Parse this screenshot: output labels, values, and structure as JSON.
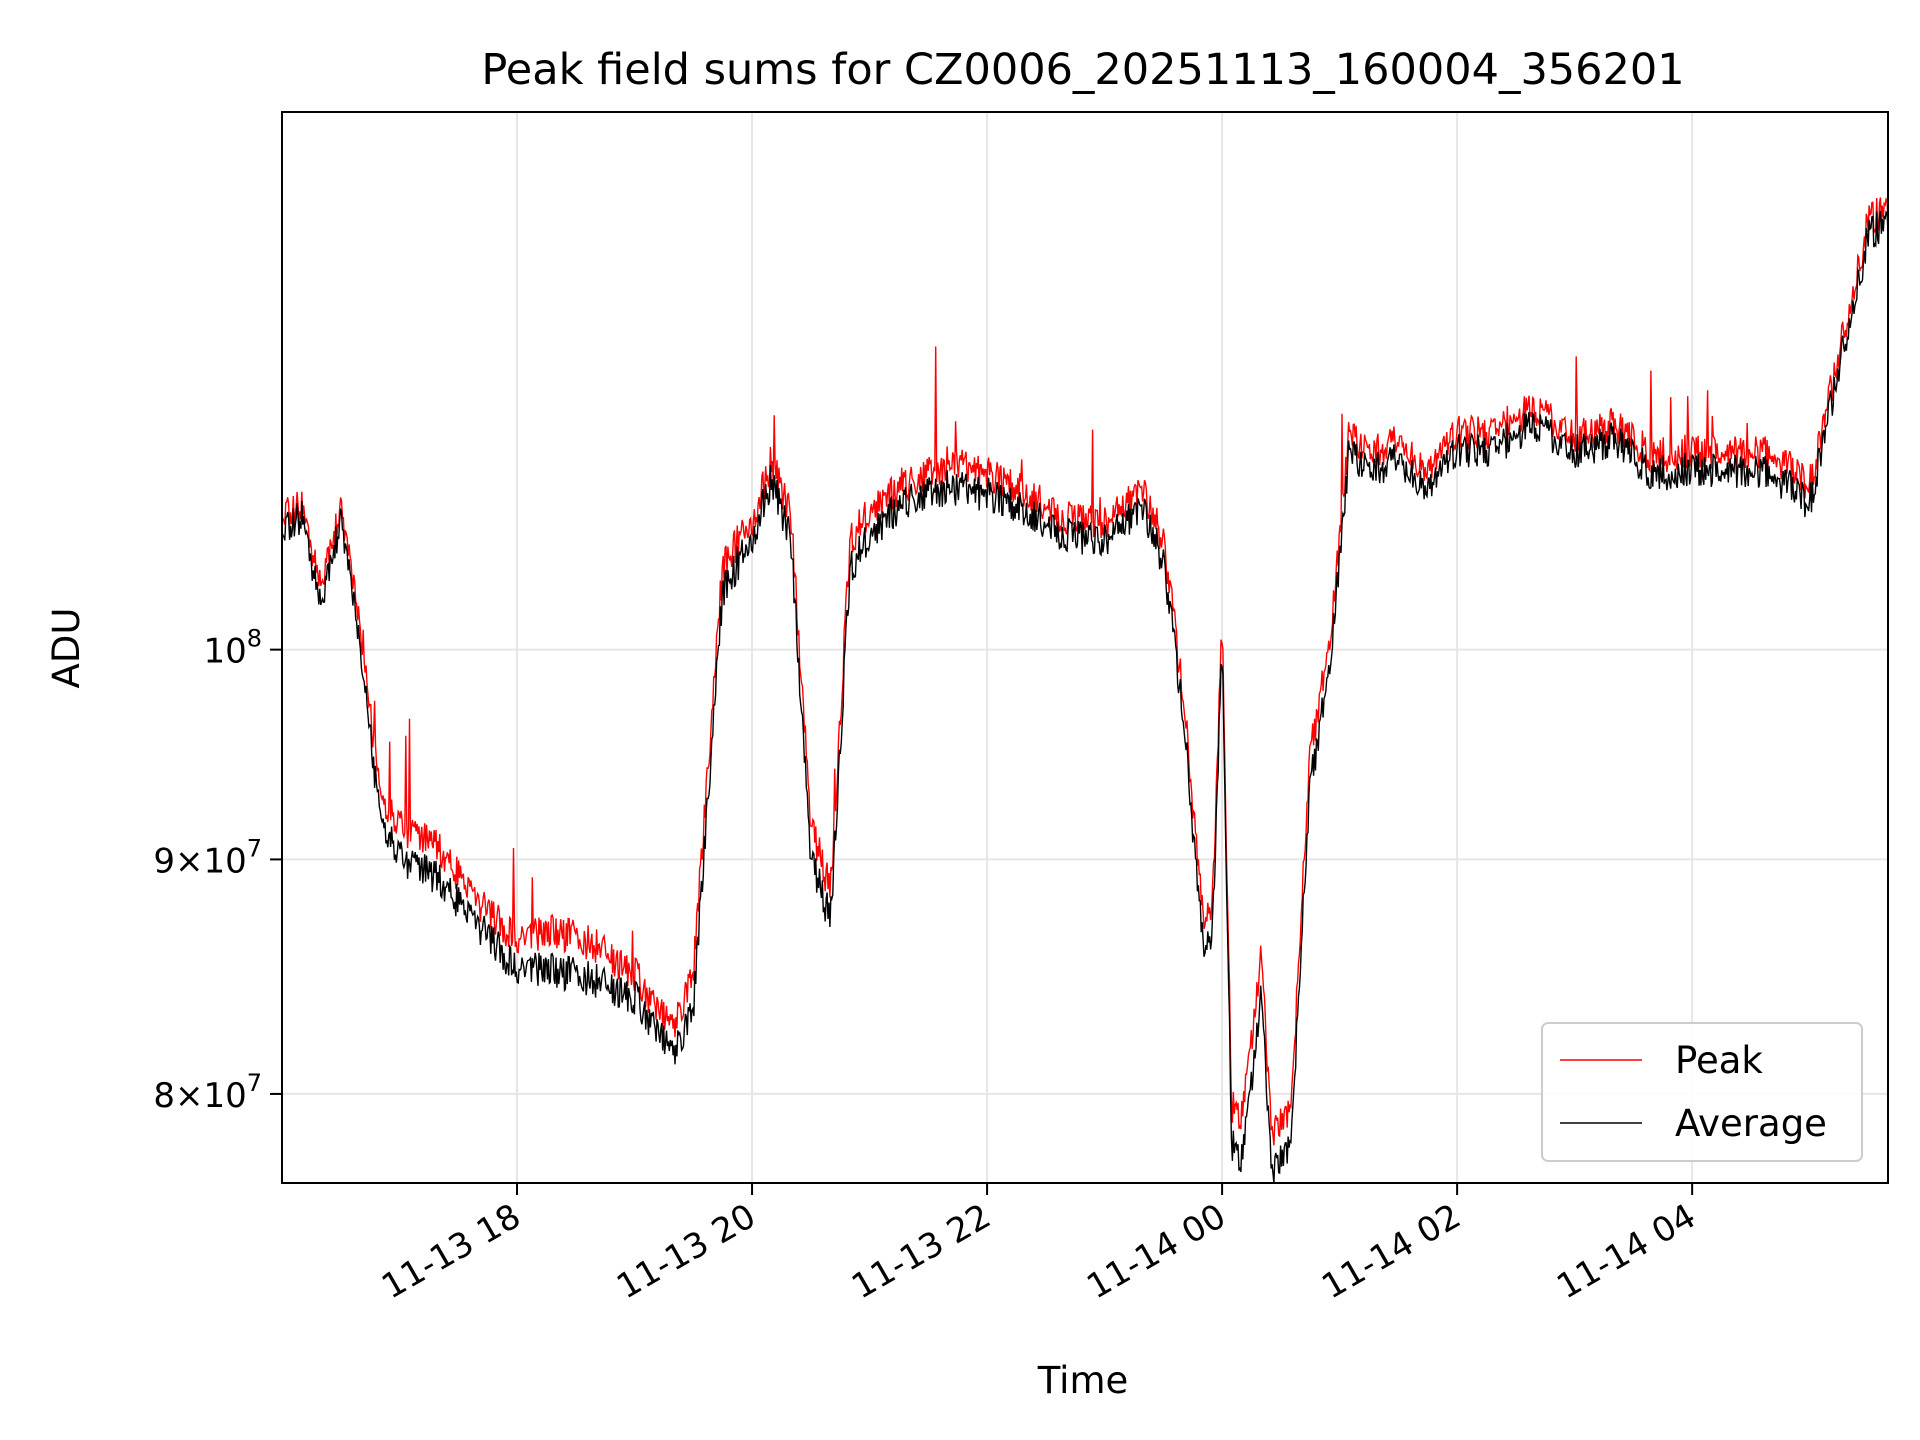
{
  "chart_data": {
    "type": "line",
    "title": "Peak field sums for CZ0006_20251113_160004_356201",
    "xlabel": "Time",
    "ylabel": "ADU",
    "x_axis": {
      "scale": "time",
      "range": [
        "2025-11-13 16:00",
        "2025-11-14 05:40"
      ],
      "ticks": [
        {
          "value": "2025-11-13 18:00",
          "label": "11-13 18"
        },
        {
          "value": "2025-11-13 20:00",
          "label": "11-13 20"
        },
        {
          "value": "2025-11-13 22:00",
          "label": "11-13 22"
        },
        {
          "value": "2025-11-14 00:00",
          "label": "11-14 00"
        },
        {
          "value": "2025-11-14 02:00",
          "label": "11-14 02"
        },
        {
          "value": "2025-11-14 04:00",
          "label": "11-14 04"
        }
      ]
    },
    "y_axis": {
      "scale": "log",
      "range": [
        76500000,
        131000000
      ],
      "ticks": [
        {
          "value": 80000000,
          "base": "8",
          "mult": "×",
          "pow": "10",
          "exp": "7"
        },
        {
          "value": 90000000,
          "base": "9",
          "mult": "×",
          "pow": "10",
          "exp": "7"
        },
        {
          "value": 100000000,
          "base": "",
          "mult": "",
          "pow": "10",
          "exp": "8"
        }
      ]
    },
    "grid": true,
    "legend": {
      "position": "lower right",
      "entries": [
        "Peak",
        "Average"
      ]
    },
    "series": [
      {
        "name": "Peak",
        "color": "#ff0000",
        "x": [
          "2025-11-13 16:00",
          "2025-11-13 16:10",
          "2025-11-13 16:20",
          "2025-11-13 16:30",
          "2025-11-13 16:40",
          "2025-11-13 16:50",
          "2025-11-13 17:00",
          "2025-11-13 17:20",
          "2025-11-13 17:40",
          "2025-11-13 18:00",
          "2025-11-13 18:20",
          "2025-11-13 18:40",
          "2025-11-13 19:00",
          "2025-11-13 19:10",
          "2025-11-13 19:20",
          "2025-11-13 19:30",
          "2025-11-13 19:45",
          "2025-11-13 20:00",
          "2025-11-13 20:10",
          "2025-11-13 20:20",
          "2025-11-13 20:30",
          "2025-11-13 20:40",
          "2025-11-13 20:50",
          "2025-11-13 21:00",
          "2025-11-13 21:20",
          "2025-11-13 21:40",
          "2025-11-13 22:00",
          "2025-11-13 22:20",
          "2025-11-13 22:40",
          "2025-11-13 23:00",
          "2025-11-13 23:20",
          "2025-11-13 23:30",
          "2025-11-13 23:40",
          "2025-11-13 23:50",
          "2025-11-13 23:55",
          "2025-11-14 00:00",
          "2025-11-14 00:05",
          "2025-11-14 00:10",
          "2025-11-14 00:20",
          "2025-11-14 00:25",
          "2025-11-14 00:35",
          "2025-11-14 00:45",
          "2025-11-14 00:55",
          "2025-11-14 01:05",
          "2025-11-14 01:15",
          "2025-11-14 01:30",
          "2025-11-14 01:45",
          "2025-11-14 02:00",
          "2025-11-14 02:20",
          "2025-11-14 02:40",
          "2025-11-14 03:00",
          "2025-11-14 03:20",
          "2025-11-14 03:40",
          "2025-11-14 04:00",
          "2025-11-14 04:20",
          "2025-11-14 04:40",
          "2025-11-14 05:00",
          "2025-11-14 05:15",
          "2025-11-14 05:30",
          "2025-11-14 05:40"
        ],
        "y": [
          106800000,
          107500000,
          103200000,
          107400000,
          101000000,
          92800000,
          91500000,
          90500000,
          88000000,
          86500000,
          86800000,
          86200000,
          85000000,
          83600000,
          82600000,
          85000000,
          104300000,
          106700000,
          110000000,
          106800000,
          91500000,
          88600000,
          105500000,
          107300000,
          108700000,
          109800000,
          109200000,
          108200000,
          106800000,
          106500000,
          108300000,
          105600000,
          98000000,
          87500000,
          88000000,
          101200000,
          79500000,
          79000000,
          85700000,
          78500000,
          79500000,
          95000000,
          100200000,
          111800000,
          110300000,
          111000000,
          109600000,
          111500000,
          111700000,
          112900000,
          111300000,
          112000000,
          110200000,
          110500000,
          110400000,
          110400000,
          108600000,
          116000000,
          124000000,
          125000000
        ]
      },
      {
        "name": "Average",
        "color": "#000000",
        "x": [
          "2025-11-13 16:00",
          "2025-11-13 16:10",
          "2025-11-13 16:20",
          "2025-11-13 16:30",
          "2025-11-13 16:40",
          "2025-11-13 16:50",
          "2025-11-13 17:00",
          "2025-11-13 17:20",
          "2025-11-13 17:40",
          "2025-11-13 18:00",
          "2025-11-13 18:20",
          "2025-11-13 18:40",
          "2025-11-13 19:00",
          "2025-11-13 19:10",
          "2025-11-13 19:20",
          "2025-11-13 19:30",
          "2025-11-13 19:45",
          "2025-11-13 20:00",
          "2025-11-13 20:10",
          "2025-11-13 20:20",
          "2025-11-13 20:30",
          "2025-11-13 20:40",
          "2025-11-13 20:50",
          "2025-11-13 21:00",
          "2025-11-13 21:20",
          "2025-11-13 21:40",
          "2025-11-13 22:00",
          "2025-11-13 22:20",
          "2025-11-13 22:40",
          "2025-11-13 23:00",
          "2025-11-13 23:20",
          "2025-11-13 23:30",
          "2025-11-13 23:40",
          "2025-11-13 23:50",
          "2025-11-13 23:55",
          "2025-11-14 00:00",
          "2025-11-14 00:05",
          "2025-11-14 00:10",
          "2025-11-14 00:20",
          "2025-11-14 00:25",
          "2025-11-14 00:35",
          "2025-11-14 00:45",
          "2025-11-14 00:55",
          "2025-11-14 01:05",
          "2025-11-14 01:15",
          "2025-11-14 01:30",
          "2025-11-14 01:45",
          "2025-11-14 02:00",
          "2025-11-14 02:20",
          "2025-11-14 02:40",
          "2025-11-14 03:00",
          "2025-11-14 03:20",
          "2025-11-14 03:40",
          "2025-11-14 04:00",
          "2025-11-14 04:20",
          "2025-11-14 04:40",
          "2025-11-14 05:00",
          "2025-11-14 05:15",
          "2025-11-14 05:30",
          "2025-11-14 05:40"
        ],
        "y": [
          105900000,
          107000000,
          102200000,
          106800000,
          100000000,
          91800000,
          90100000,
          89100000,
          87000000,
          85200000,
          85100000,
          84700000,
          84000000,
          82700000,
          81500000,
          83500000,
          103000000,
          105800000,
          109000000,
          105500000,
          90000000,
          87300000,
          104000000,
          106000000,
          107800000,
          108500000,
          108100000,
          107200000,
          105900000,
          105600000,
          107300000,
          104500000,
          97000000,
          86300000,
          86700000,
          100000000,
          78000000,
          77300000,
          84000000,
          77000000,
          78100000,
          93500000,
          99000000,
          110800000,
          109300000,
          110000000,
          108600000,
          110500000,
          110700000,
          112000000,
          110400000,
          111200000,
          109200000,
          109500000,
          109400000,
          109300000,
          107600000,
          115200000,
          123100000,
          124200000
        ]
      }
    ]
  }
}
